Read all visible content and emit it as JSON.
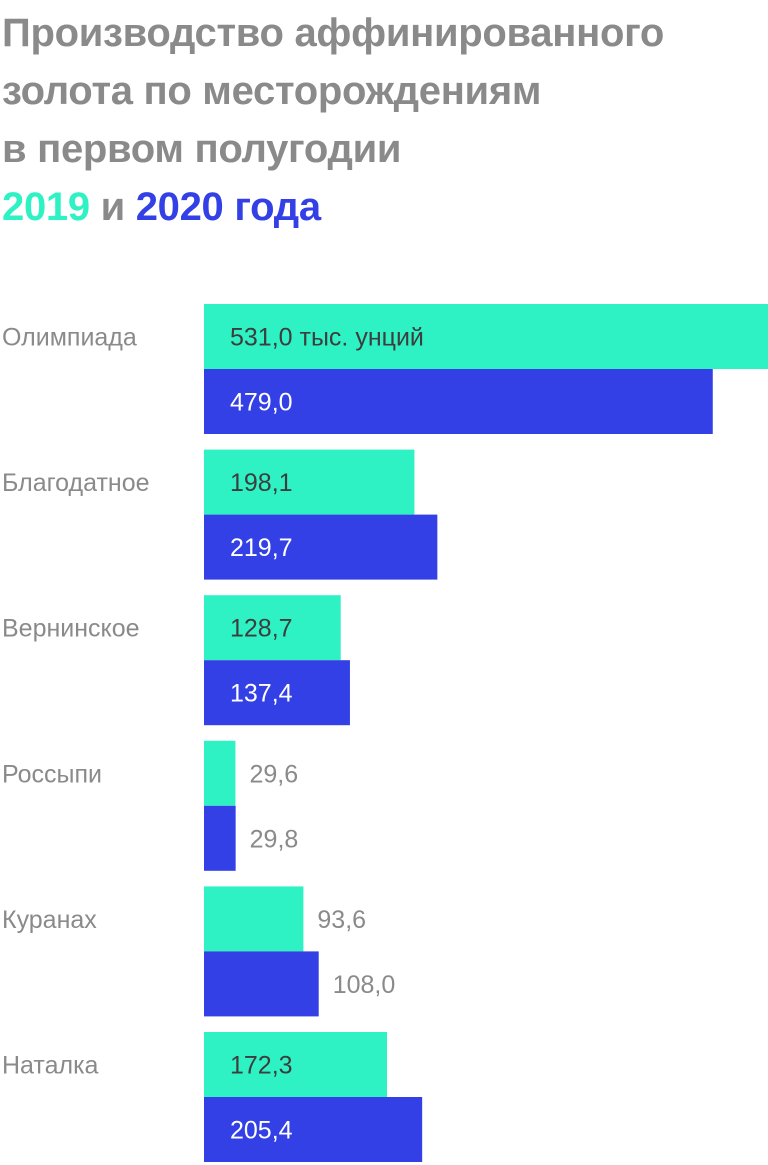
{
  "title": {
    "line1": "Производство аффинированного",
    "line2": "золота по месторождениям",
    "line3": "в первом полугодии",
    "year1": "2019",
    "conj": " и ",
    "year2": "2020 года"
  },
  "colors": {
    "series2019": "#2ef2c4",
    "series2020": "#3340e6",
    "label_inside_2019": "#3d3d3d",
    "label_inside_2020": "#ffffff",
    "label_outside": "#8a8a8a",
    "category": "#8a8a8a"
  },
  "chart_data": {
    "type": "bar",
    "orientation": "horizontal",
    "title": "Производство аффинированного золота по месторождениям в первом полугодии 2019 и 2020 года",
    "unit": "тыс. унций",
    "categories": [
      "Олимпиада",
      "Благодатное",
      "Вернинское",
      "Россыпи",
      "Куранах",
      "Наталка"
    ],
    "series": [
      {
        "name": "2019",
        "values": [
          531.0,
          198.1,
          128.7,
          29.6,
          93.6,
          172.3
        ],
        "labels": [
          "531,0 тыс. унций",
          "198,1",
          "128,7",
          "29,6",
          "93,6",
          "172,3"
        ]
      },
      {
        "name": "2020",
        "values": [
          479.0,
          219.7,
          137.4,
          29.8,
          108.0,
          205.4
        ],
        "labels": [
          "479,0",
          "219,7",
          "137,4",
          "29,8",
          "108,0",
          "205,4"
        ]
      }
    ],
    "xlim": [
      0,
      531
    ],
    "grid": false,
    "legend": "title"
  }
}
